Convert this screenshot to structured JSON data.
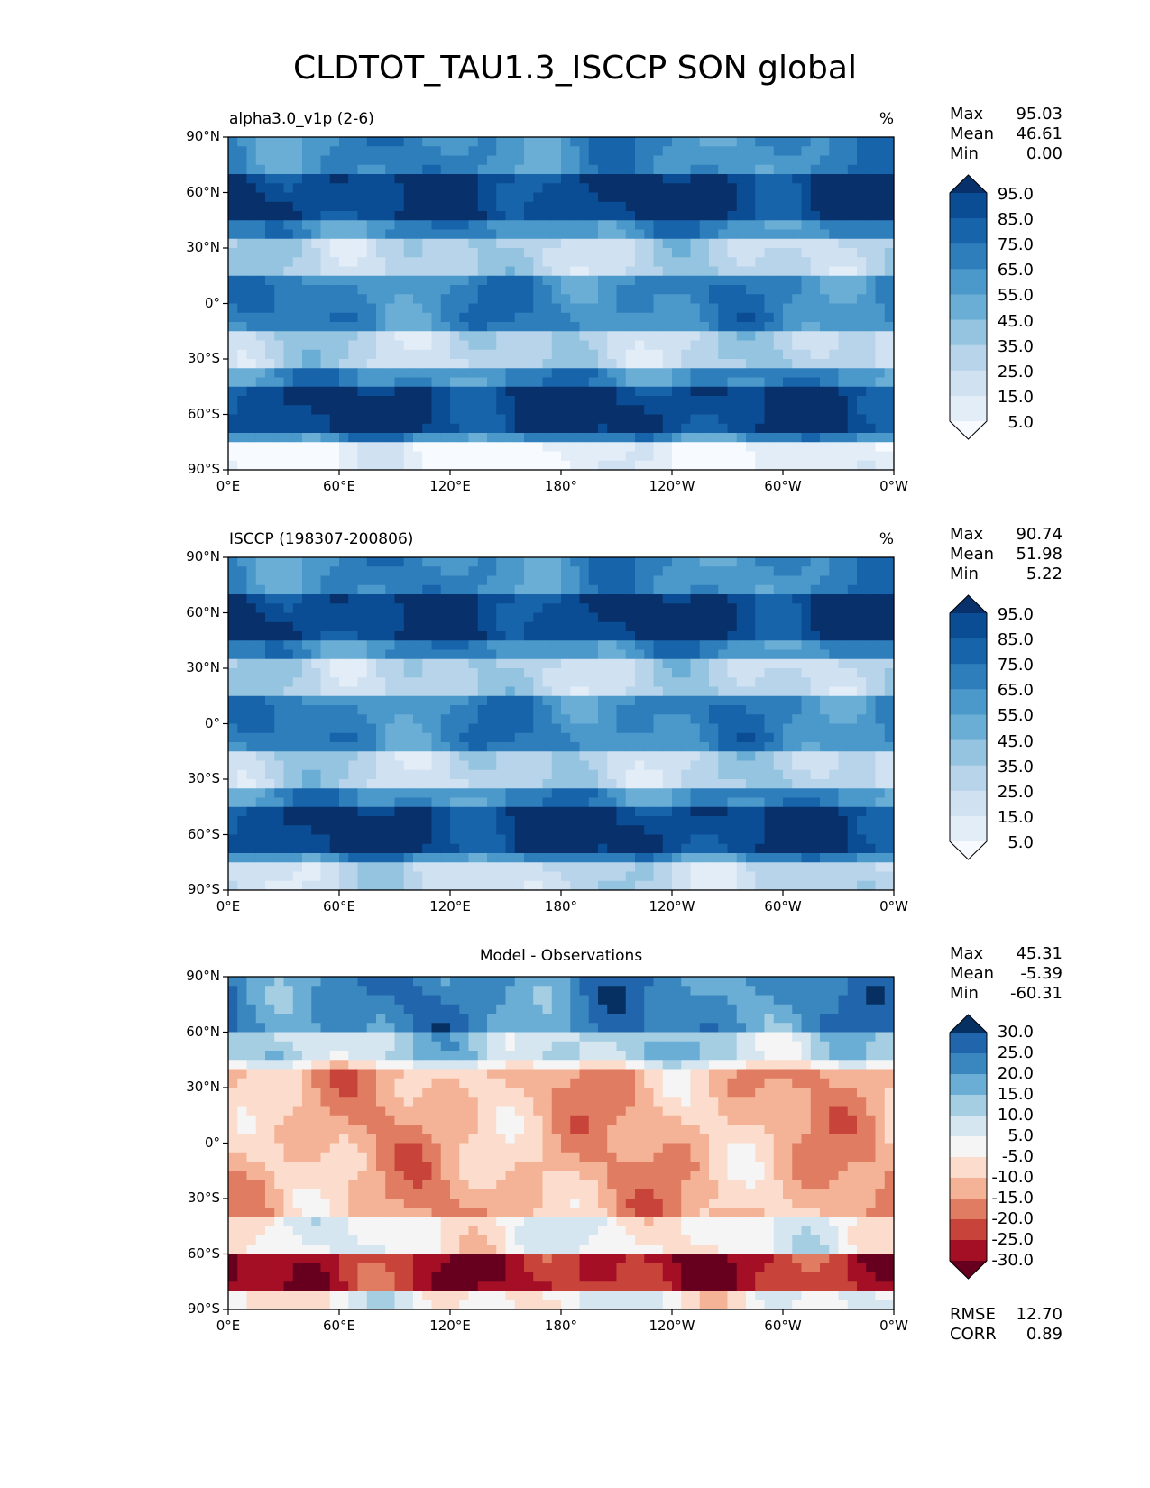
{
  "title": "CLDTOT_TAU1.3_ISCCP SON global",
  "chart_data": [
    {
      "type": "heatmap",
      "panel": "model",
      "title_left": "alpha3.0_v1p (2-6)",
      "units": "%",
      "xlabels": [
        "0°E",
        "60°E",
        "120°E",
        "180°",
        "120°W",
        "60°W",
        "0°W"
      ],
      "ylabels": [
        "90°N",
        "60°N",
        "30°N",
        "0°",
        "30°S",
        "60°S",
        "90°S"
      ],
      "xlim": [
        0,
        360
      ],
      "ylim": [
        -90,
        90
      ],
      "stats": {
        "max_label": "Max",
        "max": "95.03",
        "mean_label": "Mean",
        "mean": "46.61",
        "min_label": "Min",
        "min": "0.00"
      },
      "colorbar": {
        "levels": [
          "95.0",
          "85.0",
          "75.0",
          "65.0",
          "55.0",
          "45.0",
          "35.0",
          "25.0",
          "15.0",
          "5.0"
        ],
        "colors": [
          "#08306b",
          "#0b4d94",
          "#1764ab",
          "#2f7ebc",
          "#4b98ca",
          "#6aaed6",
          "#94c4df",
          "#b7d4ea",
          "#d0e1f2",
          "#e2edf8",
          "#f7fbff"
        ]
      }
    },
    {
      "type": "heatmap",
      "panel": "observations",
      "title_left": "ISCCP (198307-200806)",
      "units": "%",
      "xlabels": [
        "0°E",
        "60°E",
        "120°E",
        "180°",
        "120°W",
        "60°W",
        "0°W"
      ],
      "ylabels": [
        "90°N",
        "60°N",
        "30°N",
        "0°",
        "30°S",
        "60°S",
        "90°S"
      ],
      "xlim": [
        0,
        360
      ],
      "ylim": [
        -90,
        90
      ],
      "stats": {
        "max_label": "Max",
        "max": "90.74",
        "mean_label": "Mean",
        "mean": "51.98",
        "min_label": "Min",
        "min": "5.22"
      },
      "colorbar": {
        "levels": [
          "95.0",
          "85.0",
          "75.0",
          "65.0",
          "55.0",
          "45.0",
          "35.0",
          "25.0",
          "15.0",
          "5.0"
        ],
        "colors": [
          "#08306b",
          "#0b4d94",
          "#1764ab",
          "#2f7ebc",
          "#4b98ca",
          "#6aaed6",
          "#94c4df",
          "#b7d4ea",
          "#d0e1f2",
          "#e2edf8",
          "#f7fbff"
        ]
      }
    },
    {
      "type": "heatmap",
      "panel": "difference",
      "title_center": "Model - Observations",
      "xlabels": [
        "0°E",
        "60°E",
        "120°E",
        "180°",
        "120°W",
        "60°W",
        "0°W"
      ],
      "ylabels": [
        "90°N",
        "60°N",
        "30°N",
        "0°",
        "30°S",
        "60°S",
        "90°S"
      ],
      "xlim": [
        0,
        360
      ],
      "ylim": [
        -90,
        90
      ],
      "stats": {
        "max_label": "Max",
        "max": "45.31",
        "mean_label": "Mean",
        "mean": "-5.39",
        "min_label": "Min",
        "min": "-60.31"
      },
      "metrics": {
        "rmse_label": "RMSE",
        "rmse": "12.70",
        "corr_label": "CORR",
        "corr": "0.89"
      },
      "colorbar": {
        "levels": [
          "30.0",
          "25.0",
          "20.0",
          "15.0",
          "10.0",
          "5.0",
          "-5.0",
          "-10.0",
          "-15.0",
          "-20.0",
          "-25.0",
          "-30.0"
        ],
        "colors": [
          "#053061",
          "#2166ac",
          "#3a87bf",
          "#6aaed6",
          "#a6cee3",
          "#d6e6f0",
          "#f5f5f5",
          "#fcdccc",
          "#f4b396",
          "#e07c62",
          "#c8443b",
          "#a50f26",
          "#67001f"
        ]
      }
    }
  ]
}
